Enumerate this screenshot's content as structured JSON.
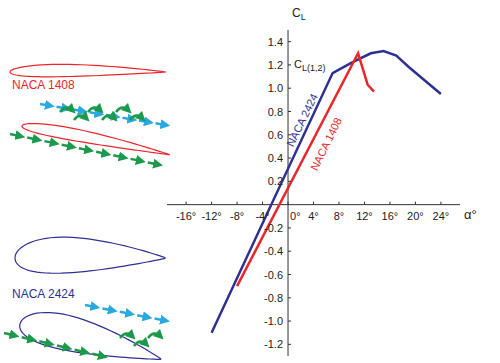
{
  "chart_data": {
    "type": "line",
    "x_label": "α°",
    "y_label": "CL",
    "annotations": [
      "CL(1,2)"
    ],
    "xlim": [
      -19,
      27
    ],
    "xticks": [
      {
        "value": -16,
        "label": "-16°"
      },
      {
        "value": -12,
        "label": "-12°"
      },
      {
        "value": -8,
        "label": "-8°"
      },
      {
        "value": -4,
        "label": "-4°"
      },
      {
        "value": 0,
        "label": "0°"
      },
      {
        "value": 4,
        "label": "4°"
      },
      {
        "value": 8,
        "label": "8°"
      },
      {
        "value": 12,
        "label": "12°"
      },
      {
        "value": 16,
        "label": "16°"
      },
      {
        "value": 20,
        "label": "20°"
      },
      {
        "value": 24,
        "label": "24°"
      }
    ],
    "ylim": [
      -1.3,
      1.5
    ],
    "yticks": [
      -1.2,
      {
        "value": -1,
        "label": "-1.0"
      },
      -0.8,
      -0.6,
      -0.4,
      -0.2,
      0.2,
      0.4,
      0.6,
      0.8,
      {
        "value": 1,
        "label": "1.0"
      },
      1.2,
      1.4
    ],
    "grid": false,
    "series": [
      {
        "name": "NACA 2424",
        "color": "#2e3192",
        "x": [
          -12,
          7,
          10,
          13,
          15,
          17,
          19,
          24
        ],
        "values": [
          -1.1,
          1.13,
          1.22,
          1.3,
          1.32,
          1.28,
          1.18,
          0.95
        ]
      },
      {
        "name": "NACA 1408",
        "color": "#e8262b",
        "x": [
          -8,
          11,
          12.5,
          13.5
        ],
        "values": [
          -0.7,
          1.3,
          1.03,
          0.97
        ]
      }
    ]
  }
}
